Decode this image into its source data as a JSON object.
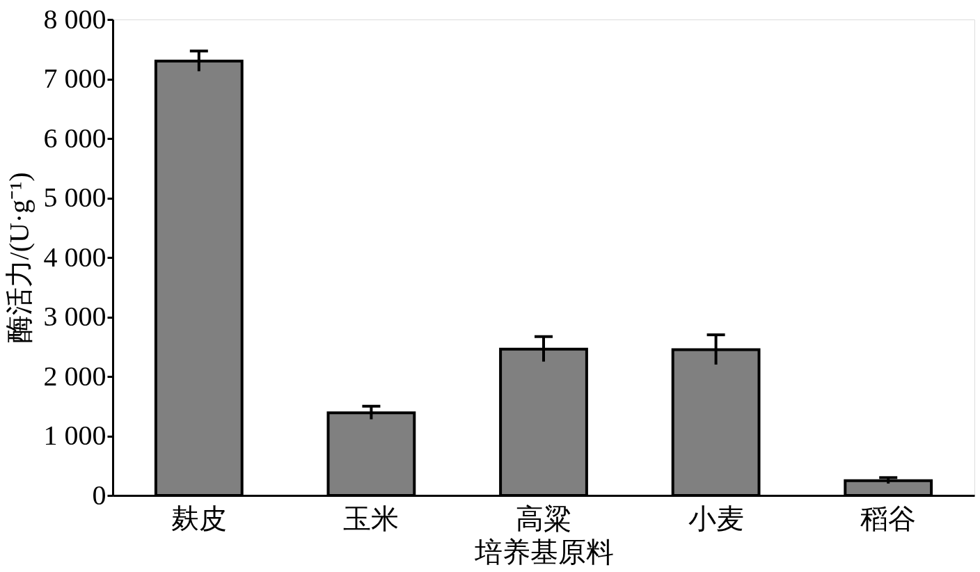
{
  "chart_data": {
    "type": "bar",
    "xlabel": "培养基原料",
    "ylabel": "酶活力/(U·g⁻¹)",
    "categories": [
      "麸皮",
      "玉米",
      "高粱",
      "小麦",
      "稻谷"
    ],
    "values": [
      7300,
      1390,
      2460,
      2450,
      250
    ],
    "errors": [
      170,
      110,
      210,
      250,
      50
    ],
    "color": "#808080",
    "ylim": [
      0,
      8000
    ],
    "yticks": [
      0,
      {
        "value": 1000,
        "label": "1 000"
      },
      {
        "value": 2000,
        "label": "2 000"
      },
      {
        "value": 3000,
        "label": "3 000"
      },
      {
        "value": 4000,
        "label": "4 000"
      },
      {
        "value": 5000,
        "label": "5 000"
      },
      {
        "value": 6000,
        "label": "6 000"
      },
      {
        "value": 7000,
        "label": "7 000"
      },
      {
        "value": 8000,
        "label": "8 000"
      }
    ],
    "grid": false
  }
}
